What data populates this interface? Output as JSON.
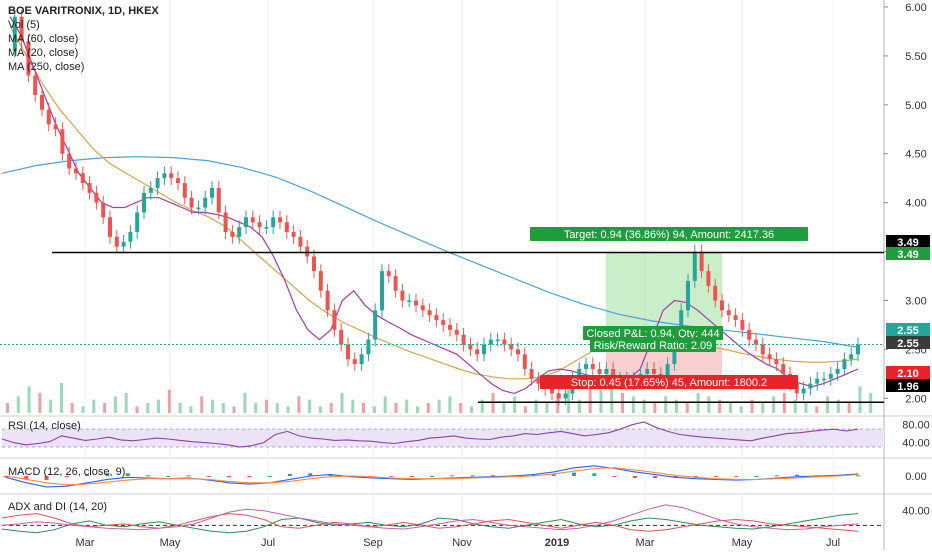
{
  "chart_data": {
    "type": "candlestick",
    "title": "BOE VARITRONIX, 1D, HKEX",
    "legend": [
      "Vol (5)",
      "MA (60, close)",
      "MA (20, close)",
      "MA (250, close)"
    ],
    "x_ticks": [
      "Mar",
      "May",
      "Jul",
      "Sep",
      "Nov",
      "2019",
      "Mar",
      "May",
      "Jul"
    ],
    "price_axis": {
      "ticks": [
        "6.00",
        "5.50",
        "5.00",
        "4.50",
        "4.00",
        "3.50",
        "3.00",
        "2.50",
        "2.00"
      ],
      "ylim": [
        1.85,
        6.02
      ]
    },
    "price_tags": [
      {
        "label": "3.49",
        "style": "black"
      },
      {
        "label": "3.49",
        "style": "green"
      },
      {
        "label": "2.55",
        "style": "teal"
      },
      {
        "label": "2.55",
        "style": "dark"
      },
      {
        "label": "2.10",
        "style": "red"
      },
      {
        "label": "1.96",
        "style": "black"
      }
    ],
    "close_series": [
      5.55,
      5.9,
      5.65,
      5.3,
      5.1,
      4.95,
      4.8,
      4.75,
      4.5,
      4.35,
      4.3,
      4.2,
      4.1,
      4.0,
      3.85,
      3.65,
      3.55,
      3.6,
      3.7,
      3.9,
      4.1,
      4.15,
      4.25,
      4.3,
      4.25,
      4.2,
      4.05,
      3.95,
      3.95,
      4.05,
      4.15,
      3.9,
      3.7,
      3.65,
      3.75,
      3.85,
      3.8,
      3.75,
      3.75,
      3.85,
      3.8,
      3.7,
      3.65,
      3.55,
      3.45,
      3.3,
      3.1,
      2.9,
      2.7,
      2.55,
      2.4,
      2.35,
      2.45,
      2.6,
      2.9,
      3.3,
      3.25,
      3.1,
      3.0,
      3.0,
      2.95,
      2.9,
      2.85,
      2.8,
      2.75,
      2.7,
      2.65,
      2.55,
      2.5,
      2.45,
      2.55,
      2.6,
      2.6,
      2.55,
      2.5,
      2.45,
      2.3,
      2.2,
      2.15,
      2.1,
      2.05,
      2.0,
      2.05,
      2.2,
      2.3,
      2.35,
      2.3,
      2.25,
      2.3,
      2.2,
      2.2,
      2.15,
      2.2,
      2.25,
      2.3,
      2.25,
      2.2,
      2.35,
      2.6,
      2.9,
      3.2,
      3.5,
      3.3,
      3.15,
      3.0,
      2.9,
      2.85,
      2.8,
      2.7,
      2.6,
      2.55,
      2.45,
      2.4,
      2.35,
      2.25,
      2.15,
      2.05,
      2.1,
      2.15,
      2.2,
      2.2,
      2.25,
      2.3,
      2.4,
      2.45,
      2.55
    ],
    "ma20": [
      5.9,
      5.7,
      5.4,
      5.1,
      4.8,
      4.55,
      4.3,
      4.15,
      4.0,
      3.95,
      3.95,
      4.0,
      4.05,
      4.05,
      4.0,
      3.95,
      3.9,
      3.9,
      3.88,
      3.85,
      3.8,
      3.75,
      3.65,
      3.45,
      3.2,
      2.9,
      2.7,
      2.6,
      2.7,
      3.0,
      3.1,
      2.95,
      2.85,
      2.78,
      2.72,
      2.65,
      2.6,
      2.55,
      2.5,
      2.45,
      2.35,
      2.25,
      2.15,
      2.08,
      2.05,
      2.1,
      2.2,
      2.28,
      2.3,
      2.28,
      2.25,
      2.22,
      2.2,
      2.22,
      2.2,
      2.3,
      2.6,
      2.9,
      3.0,
      2.98,
      2.9,
      2.8,
      2.7,
      2.6,
      2.5,
      2.42,
      2.35,
      2.3,
      2.2,
      2.15,
      2.12,
      2.15,
      2.2,
      2.25,
      2.3
    ],
    "ma60": [
      5.8,
      5.5,
      5.2,
      4.95,
      4.75,
      4.55,
      4.4,
      4.3,
      4.2,
      4.1,
      4.0,
      3.92,
      3.85,
      3.75,
      3.6,
      3.45,
      3.3,
      3.15,
      3.0,
      2.88,
      2.78,
      2.7,
      2.62,
      2.55,
      2.48,
      2.42,
      2.36,
      2.3,
      2.25,
      2.22,
      2.2,
      2.2,
      2.22,
      2.28,
      2.38,
      2.48,
      2.55,
      2.6,
      2.62,
      2.62,
      2.6,
      2.57,
      2.53,
      2.5,
      2.46,
      2.43,
      2.4,
      2.38,
      2.37,
      2.37,
      2.38,
      2.4
    ],
    "ma250": [
      4.3,
      4.38,
      4.43,
      4.46,
      4.47,
      4.46,
      4.43,
      4.36,
      4.26,
      4.12,
      3.96,
      3.8,
      3.65,
      3.5,
      3.36,
      3.22,
      3.08,
      2.96,
      2.86,
      2.79,
      2.74,
      2.7,
      2.66,
      2.62,
      2.58,
      2.52
    ],
    "levels": [
      {
        "name": "resistance",
        "value": 3.49
      },
      {
        "name": "support",
        "value": 1.96
      },
      {
        "name": "last",
        "value": 2.55
      }
    ],
    "position": {
      "target_text": "Target: 0.94 (36.86%) 94, Amount: 2417.36",
      "stop_text": "Stop: 0.45 (17.65%) 45, Amount: 1800.2",
      "pnl_text": "Closed P&L: 0.94, Qty: 444",
      "rr_text": "Risk/Reward Ratio: 2.09",
      "entry": 2.55,
      "target": 3.49,
      "stop": 2.1
    },
    "volume": [
      3,
      5,
      8,
      6,
      4,
      9,
      3,
      2,
      4,
      3,
      5,
      6,
      2,
      3,
      4,
      7,
      3,
      2,
      5,
      4,
      3,
      2,
      6,
      3,
      4,
      3,
      2,
      5,
      4,
      2,
      3,
      6,
      4,
      3,
      2,
      5,
      3,
      4,
      2,
      3,
      4,
      5,
      3,
      2,
      4,
      6,
      3,
      5,
      2,
      4,
      3,
      6,
      8,
      4,
      9,
      7,
      12,
      6,
      5,
      4,
      3,
      5,
      4,
      3,
      6,
      5,
      4,
      3,
      2,
      4,
      3,
      5,
      6,
      4,
      3,
      2,
      5,
      4,
      3,
      8,
      6
    ],
    "rsi": {
      "label": "RSI (14, close)",
      "ticks": [
        "80.00",
        "40.00"
      ],
      "ylim": [
        10,
        95
      ],
      "upper": 70,
      "lower": 30,
      "values": [
        48,
        40,
        35,
        38,
        42,
        55,
        50,
        45,
        48,
        52,
        46,
        44,
        47,
        50,
        48,
        45,
        42,
        40,
        38,
        35,
        30,
        33,
        40,
        58,
        65,
        55,
        50,
        48,
        45,
        46,
        44,
        43,
        40,
        38,
        42,
        45,
        50,
        52,
        55,
        50,
        48,
        47,
        52,
        55,
        60,
        58,
        62,
        65,
        60,
        55,
        58,
        62,
        70,
        80,
        86,
        74,
        65,
        58,
        55,
        52,
        50,
        48,
        46,
        44,
        50,
        55,
        60,
        62,
        65,
        68,
        70,
        66,
        70
      ]
    },
    "macd": {
      "label": "MACD (12, 26, close, 9)",
      "ticks": [
        "0.00"
      ],
      "ylim": [
        -0.25,
        0.22
      ],
      "macd": [
        -0.02,
        -0.1,
        -0.16,
        -0.15,
        -0.1,
        -0.05,
        -0.02,
        -0.03,
        -0.04,
        -0.03,
        -0.06,
        -0.1,
        -0.12,
        -0.1,
        -0.05,
        0.0,
        0.02,
        -0.01,
        -0.03,
        -0.04,
        -0.05,
        -0.04,
        -0.03,
        -0.02,
        -0.01,
        0.0,
        0.02,
        0.06,
        0.12,
        0.15,
        0.11,
        0.06,
        0.02,
        -0.02,
        -0.04,
        -0.05,
        -0.06,
        -0.05,
        -0.03,
        -0.01,
        0.0,
        0.01,
        0.03
      ],
      "signal": [
        0.0,
        -0.05,
        -0.1,
        -0.13,
        -0.12,
        -0.09,
        -0.06,
        -0.04,
        -0.04,
        -0.04,
        -0.05,
        -0.08,
        -0.1,
        -0.1,
        -0.08,
        -0.04,
        -0.01,
        0.0,
        -0.01,
        -0.03,
        -0.04,
        -0.04,
        -0.04,
        -0.03,
        -0.02,
        -0.01,
        0.0,
        0.03,
        0.07,
        0.11,
        0.12,
        0.09,
        0.05,
        0.01,
        -0.02,
        -0.04,
        -0.05,
        -0.05,
        -0.04,
        -0.03,
        -0.01,
        0.0,
        0.02
      ]
    },
    "adx": {
      "label": "ADX and DI (14, 20)",
      "ticks": [
        "40.00"
      ],
      "ylim": [
        0,
        60
      ],
      "threshold": 20,
      "adx": [
        20,
        22,
        25,
        23,
        20,
        18,
        16,
        15,
        14,
        16,
        18,
        22,
        30,
        38,
        42,
        40,
        35,
        30,
        26,
        22,
        20,
        18,
        16,
        15,
        18,
        22,
        26,
        28,
        24,
        20,
        18,
        16,
        14,
        16,
        20,
        26,
        34,
        42,
        48,
        44,
        36,
        28,
        22,
        18,
        16,
        14,
        15,
        18,
        20,
        22
      ],
      "plus_di": [
        15,
        12,
        10,
        14,
        22,
        26,
        20,
        18,
        22,
        25,
        20,
        16,
        12,
        10,
        12,
        18,
        28,
        30,
        24,
        20,
        22,
        24,
        20,
        18,
        22,
        30,
        28,
        22,
        18,
        16,
        20,
        24,
        28,
        22,
        18,
        20,
        26,
        30,
        28,
        24,
        20,
        18,
        16,
        15,
        18,
        22,
        26,
        30,
        34,
        36
      ],
      "minus_di": [
        30,
        34,
        36,
        30,
        22,
        18,
        20,
        22,
        18,
        16,
        20,
        26,
        32,
        36,
        34,
        28,
        18,
        16,
        20,
        24,
        22,
        18,
        20,
        24,
        20,
        16,
        18,
        22,
        26,
        28,
        24,
        20,
        16,
        20,
        24,
        20,
        14,
        12,
        14,
        18,
        22,
        26,
        28,
        26,
        22,
        20,
        18,
        16,
        14,
        12
      ]
    }
  }
}
